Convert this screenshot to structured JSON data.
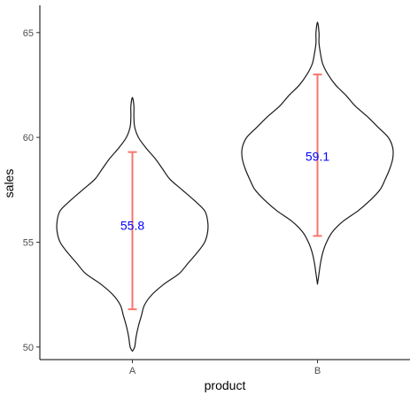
{
  "chart_data": {
    "type": "violin",
    "title": "",
    "xlabel": "product",
    "ylabel": "sales",
    "categories": [
      "A",
      "B"
    ],
    "ylim": [
      49.4,
      66.3
    ],
    "y_ticks": [
      50,
      55,
      60,
      65
    ],
    "grid": false,
    "legend": "none",
    "colors": {
      "violin_outline": "#1a1a1a",
      "error_bar": "#f8766d",
      "mean_label": "#0000ff",
      "axis": "#000000",
      "tick_label": "#4d4d4d"
    },
    "groups": [
      {
        "category": "A",
        "mean": 55.8,
        "mean_label": "55.8",
        "error_low": 51.8,
        "error_high": 59.3,
        "density": [
          [
            49.8,
            0.0
          ],
          [
            50.0,
            0.03
          ],
          [
            50.5,
            0.05
          ],
          [
            51.0,
            0.08
          ],
          [
            51.5,
            0.12
          ],
          [
            52.0,
            0.16
          ],
          [
            52.5,
            0.26
          ],
          [
            53.0,
            0.42
          ],
          [
            53.5,
            0.62
          ],
          [
            54.0,
            0.74
          ],
          [
            54.5,
            0.86
          ],
          [
            55.0,
            0.96
          ],
          [
            55.5,
            1.0
          ],
          [
            56.0,
            1.0
          ],
          [
            56.5,
            0.96
          ],
          [
            57.0,
            0.82
          ],
          [
            57.5,
            0.66
          ],
          [
            58.0,
            0.5
          ],
          [
            58.5,
            0.4
          ],
          [
            59.0,
            0.3
          ],
          [
            59.5,
            0.18
          ],
          [
            60.0,
            0.08
          ],
          [
            60.5,
            0.03
          ],
          [
            61.0,
            0.02
          ],
          [
            61.5,
            0.02
          ],
          [
            61.9,
            0.0
          ]
        ]
      },
      {
        "category": "B",
        "mean": 59.1,
        "mean_label": "59.1",
        "error_low": 55.3,
        "error_high": 63.0,
        "density": [
          [
            53.0,
            0.0
          ],
          [
            53.5,
            0.02
          ],
          [
            54.0,
            0.04
          ],
          [
            54.5,
            0.07
          ],
          [
            55.0,
            0.12
          ],
          [
            55.5,
            0.2
          ],
          [
            56.0,
            0.34
          ],
          [
            56.5,
            0.54
          ],
          [
            57.0,
            0.7
          ],
          [
            57.5,
            0.83
          ],
          [
            58.0,
            0.9
          ],
          [
            58.5,
            0.96
          ],
          [
            59.0,
            1.0
          ],
          [
            59.5,
            1.0
          ],
          [
            60.0,
            0.94
          ],
          [
            60.5,
            0.8
          ],
          [
            61.0,
            0.66
          ],
          [
            61.5,
            0.5
          ],
          [
            62.0,
            0.38
          ],
          [
            62.5,
            0.24
          ],
          [
            63.0,
            0.14
          ],
          [
            63.5,
            0.07
          ],
          [
            64.0,
            0.04
          ],
          [
            64.5,
            0.02
          ],
          [
            65.0,
            0.02
          ],
          [
            65.5,
            0.0
          ]
        ]
      }
    ]
  }
}
